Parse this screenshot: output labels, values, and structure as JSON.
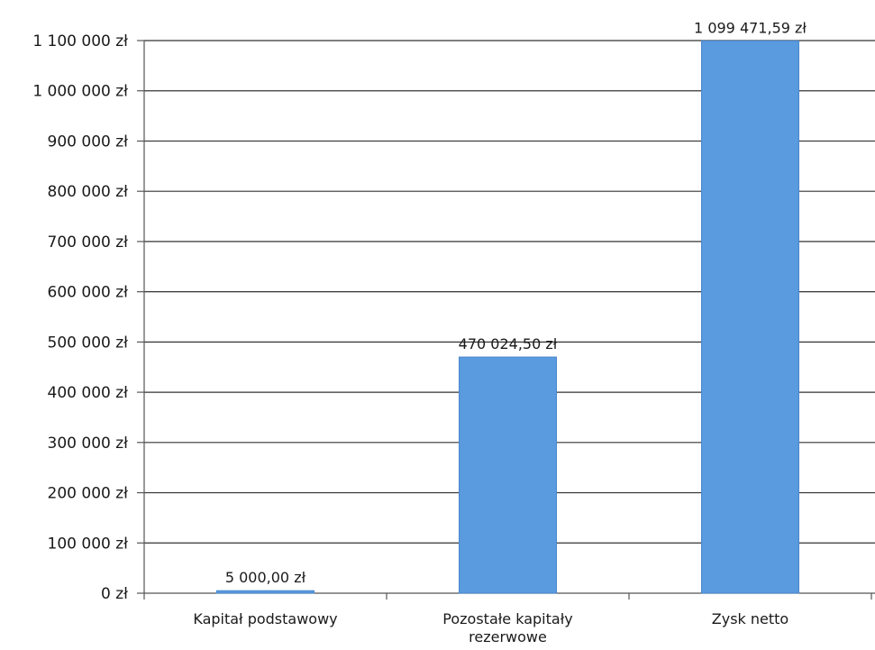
{
  "chart_data": {
    "type": "bar",
    "title": "",
    "xlabel": "",
    "ylabel": "",
    "categories": [
      [
        "Kapitał podstawowy"
      ],
      [
        "Pozostałe kapitały",
        "rezerwowe"
      ],
      [
        "Zysk netto"
      ]
    ],
    "values": [
      5000.0,
      470024.5,
      1099471.59
    ],
    "value_labels": [
      "5 000,00 zł",
      "470 024,50 zł",
      "1 099 471,59 zł"
    ],
    "ylim": [
      0,
      1100000
    ],
    "yticks": [
      0,
      100000,
      200000,
      300000,
      400000,
      500000,
      600000,
      700000,
      800000,
      900000,
      1000000,
      1100000
    ],
    "ytick_labels": [
      "0 zł",
      "100 000 zł",
      "200 000 zł",
      "300 000 zł",
      "400 000 zł",
      "500 000 zł",
      "600 000 zł",
      "700 000 zł",
      "800 000 zł",
      "900 000 zł",
      "1 000 000 zł",
      "1 100 000 zł"
    ],
    "grid": true,
    "legend": "none",
    "colors": {
      "bar": "#5a9be0",
      "bar_edge": "#4a86cc",
      "grid": "#333333",
      "text": "#1a1a1a"
    }
  }
}
